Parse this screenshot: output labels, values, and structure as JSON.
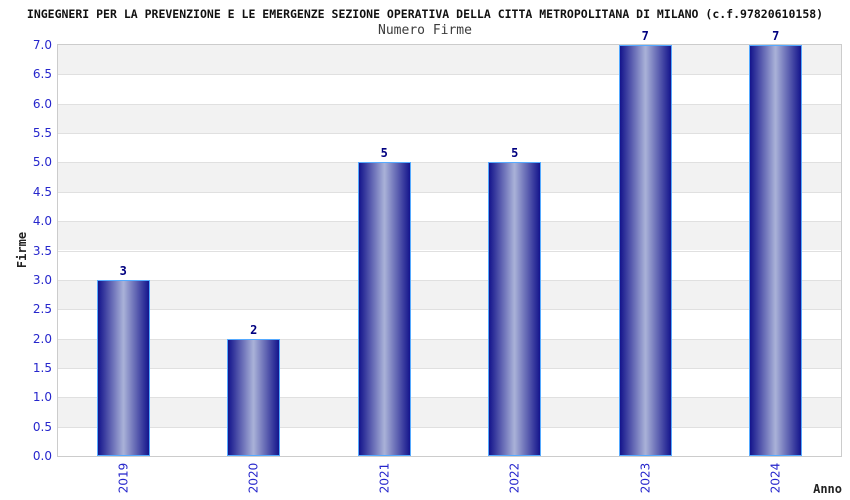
{
  "chart_data": {
    "type": "bar",
    "title": "INGEGNERI PER LA PREVENZIONE E LE EMERGENZE SEZIONE OPERATIVA DELLA CITTA METROPOLITANA DI MILANO (c.f.97820610158)",
    "subtitle": "Numero Firme",
    "xlabel": "Anno",
    "ylabel": "Firme",
    "categories": [
      "2019",
      "2020",
      "2021",
      "2022",
      "2023",
      "2024"
    ],
    "values": [
      3,
      2,
      5,
      5,
      7,
      7
    ],
    "ylim": [
      0,
      7
    ],
    "ytick_step": 0.5,
    "grid": true,
    "legend": "none",
    "plot_bands": "alternating horizontal bands, gray topmost",
    "colors": {
      "bar_edge": "#14148C",
      "bar_center": "#AAB2D8",
      "bar_border": "#55AAFF",
      "axis_tick_label": "#2626CC",
      "value_label": "#000080",
      "band_gray": "#F2F2F2",
      "band_white": "#FFFFFF",
      "gridline": "#E0E0E0",
      "plot_border": "#CCCCCC",
      "title_color": "#111111",
      "subtitle_color": "#3C3C3C",
      "axis_title_color": "#222222"
    }
  }
}
